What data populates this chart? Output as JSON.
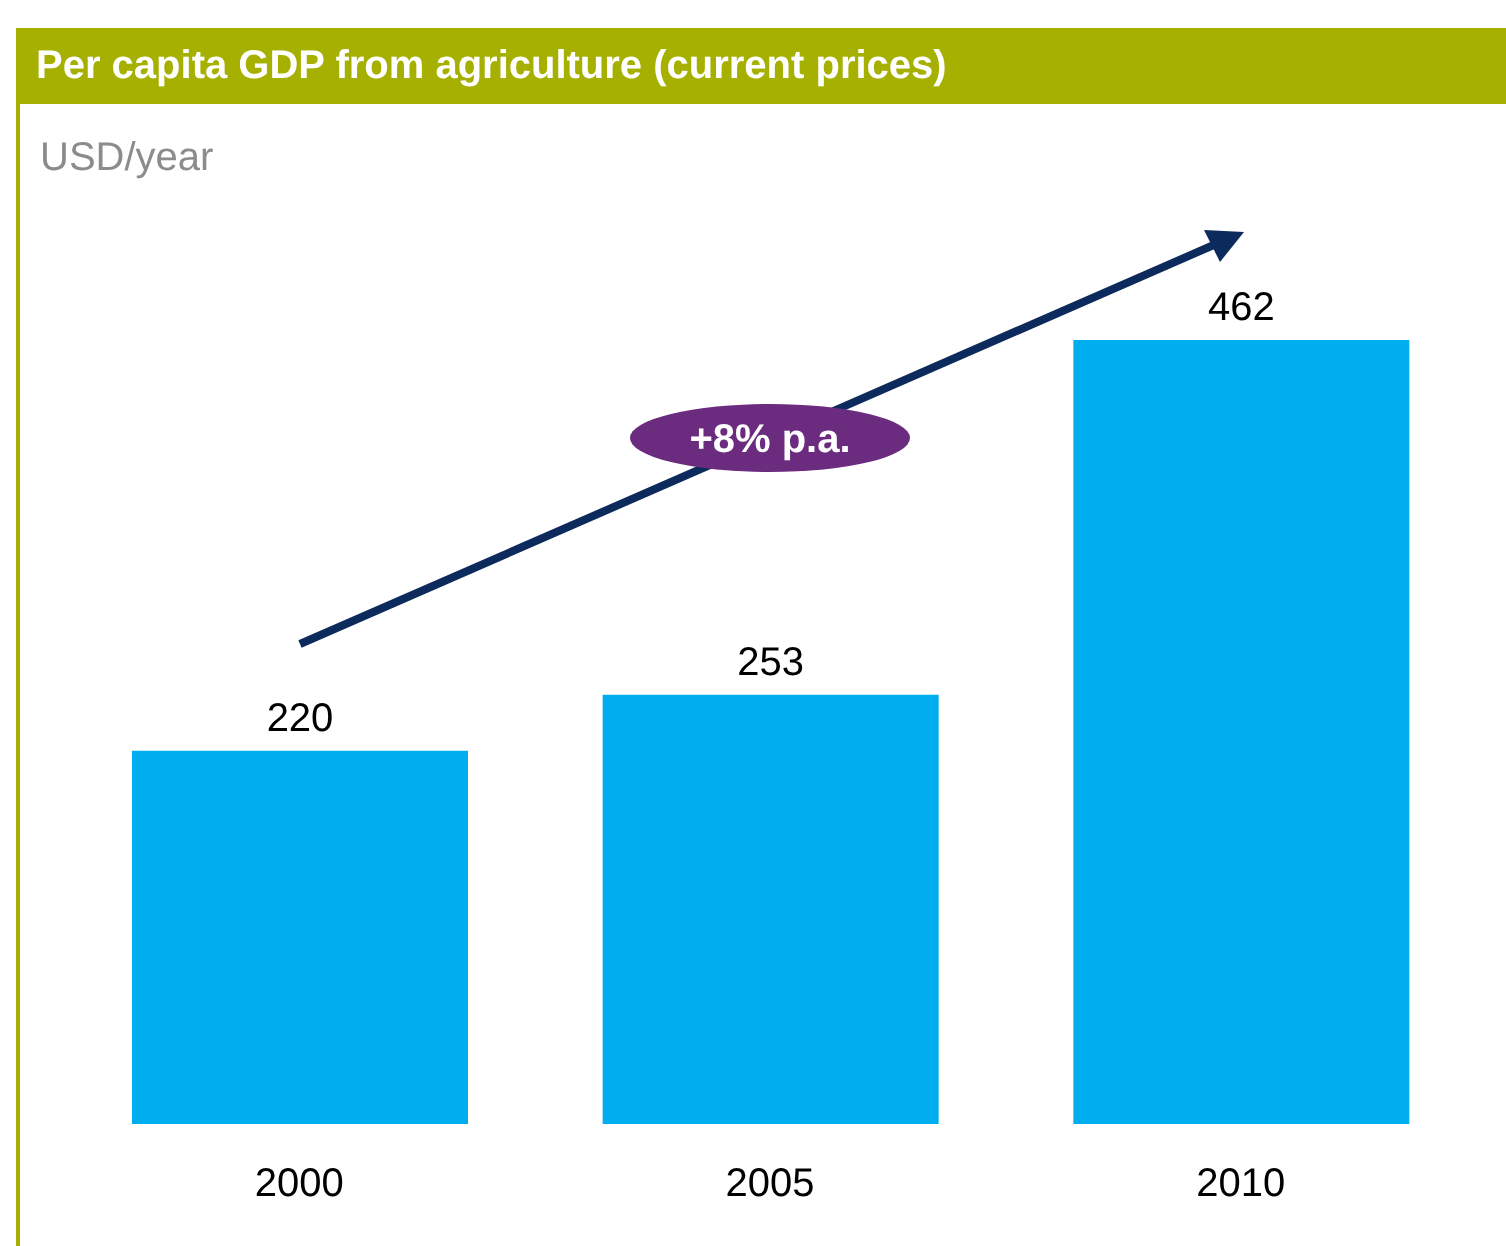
{
  "chart_data": {
    "type": "bar",
    "title": "Per capita GDP from agriculture (current prices)",
    "ylabel": "USD/year",
    "categories": [
      "2000",
      "2005",
      "2010"
    ],
    "values": [
      220,
      253,
      462
    ],
    "color": "#00aeef",
    "data_labels": true,
    "annotations": [
      "+8% p.a."
    ]
  }
}
